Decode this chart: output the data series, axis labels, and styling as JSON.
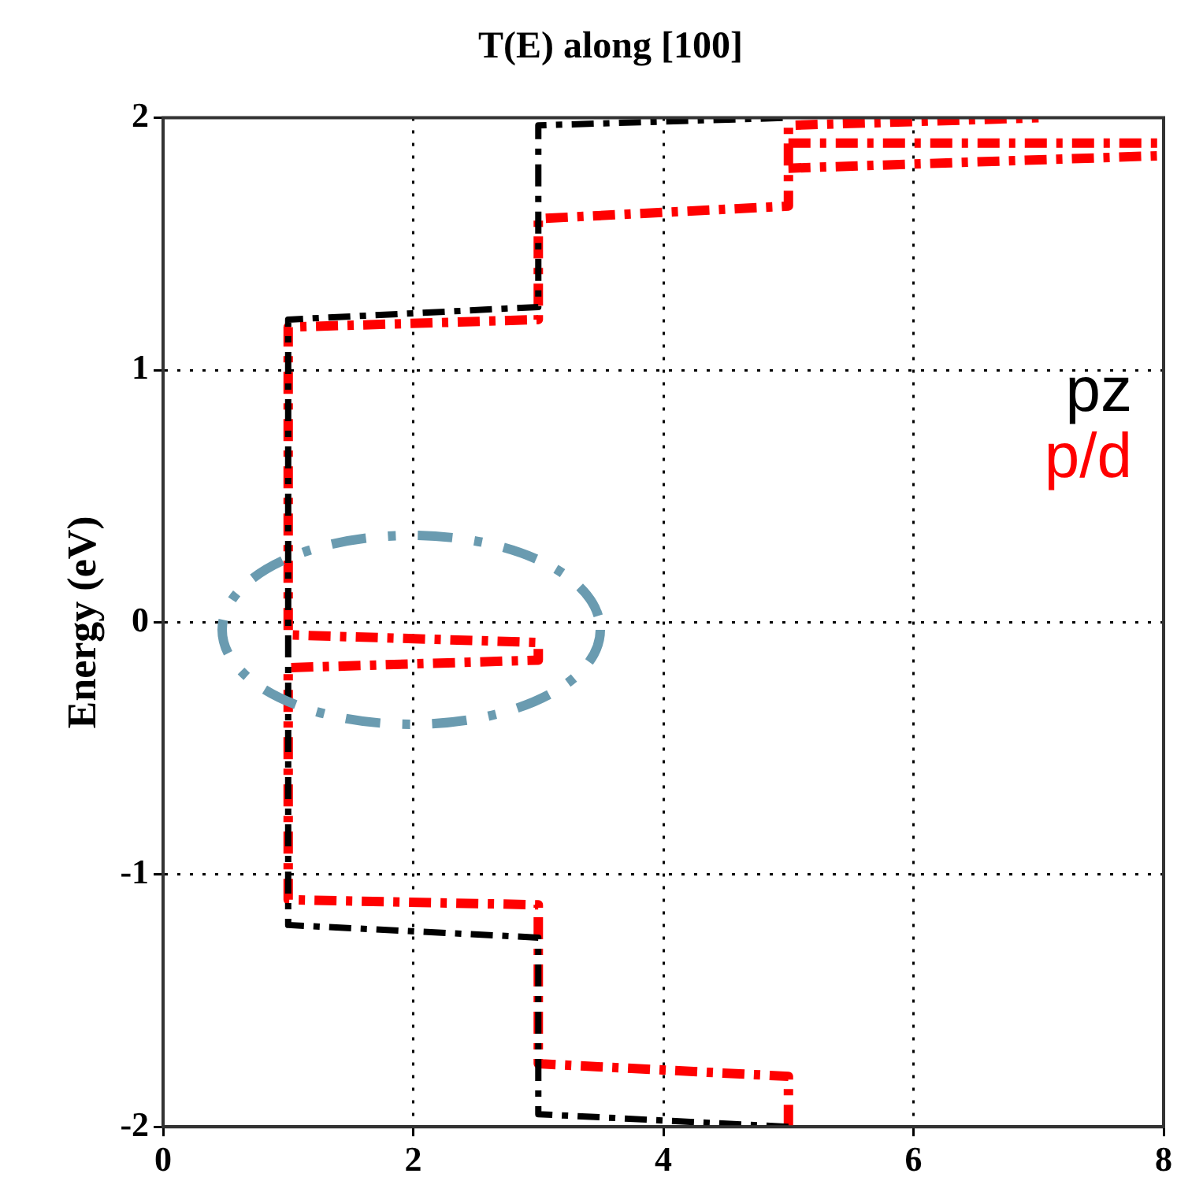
{
  "chart_data": {
    "type": "line",
    "title": "T(E) along [100]",
    "ylabel": "Energy (eV)",
    "xlim": [
      0,
      8
    ],
    "xticks": [
      0,
      2,
      4,
      6,
      8
    ],
    "ylim": [
      -2,
      2
    ],
    "yticks": [
      -2,
      -1,
      0,
      1,
      2
    ],
    "grid": true,
    "legend": "right",
    "line_style": "dashed",
    "marker": "none",
    "series": [
      {
        "name": "pz",
        "color": "#000000",
        "x": [
          5,
          3,
          3,
          1,
          1,
          3,
          3,
          5
        ],
        "values": [
          -2.0,
          -1.95,
          -1.25,
          -1.2,
          1.2,
          1.25,
          1.97,
          2.0
        ]
      },
      {
        "name": "p/d",
        "color": "#ff0000",
        "x": [
          5,
          5,
          3,
          3,
          1,
          1,
          3,
          3,
          1,
          1,
          3,
          3,
          5,
          5,
          7
        ],
        "values": [
          -2.0,
          -1.8,
          -1.75,
          -1.12,
          -1.1,
          -0.18,
          -0.15,
          -0.08,
          -0.05,
          1.17,
          1.2,
          1.6,
          1.65,
          1.97,
          2.0
        ]
      },
      {
        "color": "#ff0000",
        "x": [
          5,
          8
        ],
        "values": [
          1.9,
          1.9
        ]
      },
      {
        "color": "#ff0000",
        "x": [
          5,
          8
        ],
        "values": [
          1.8,
          1.85
        ]
      }
    ]
  }
}
